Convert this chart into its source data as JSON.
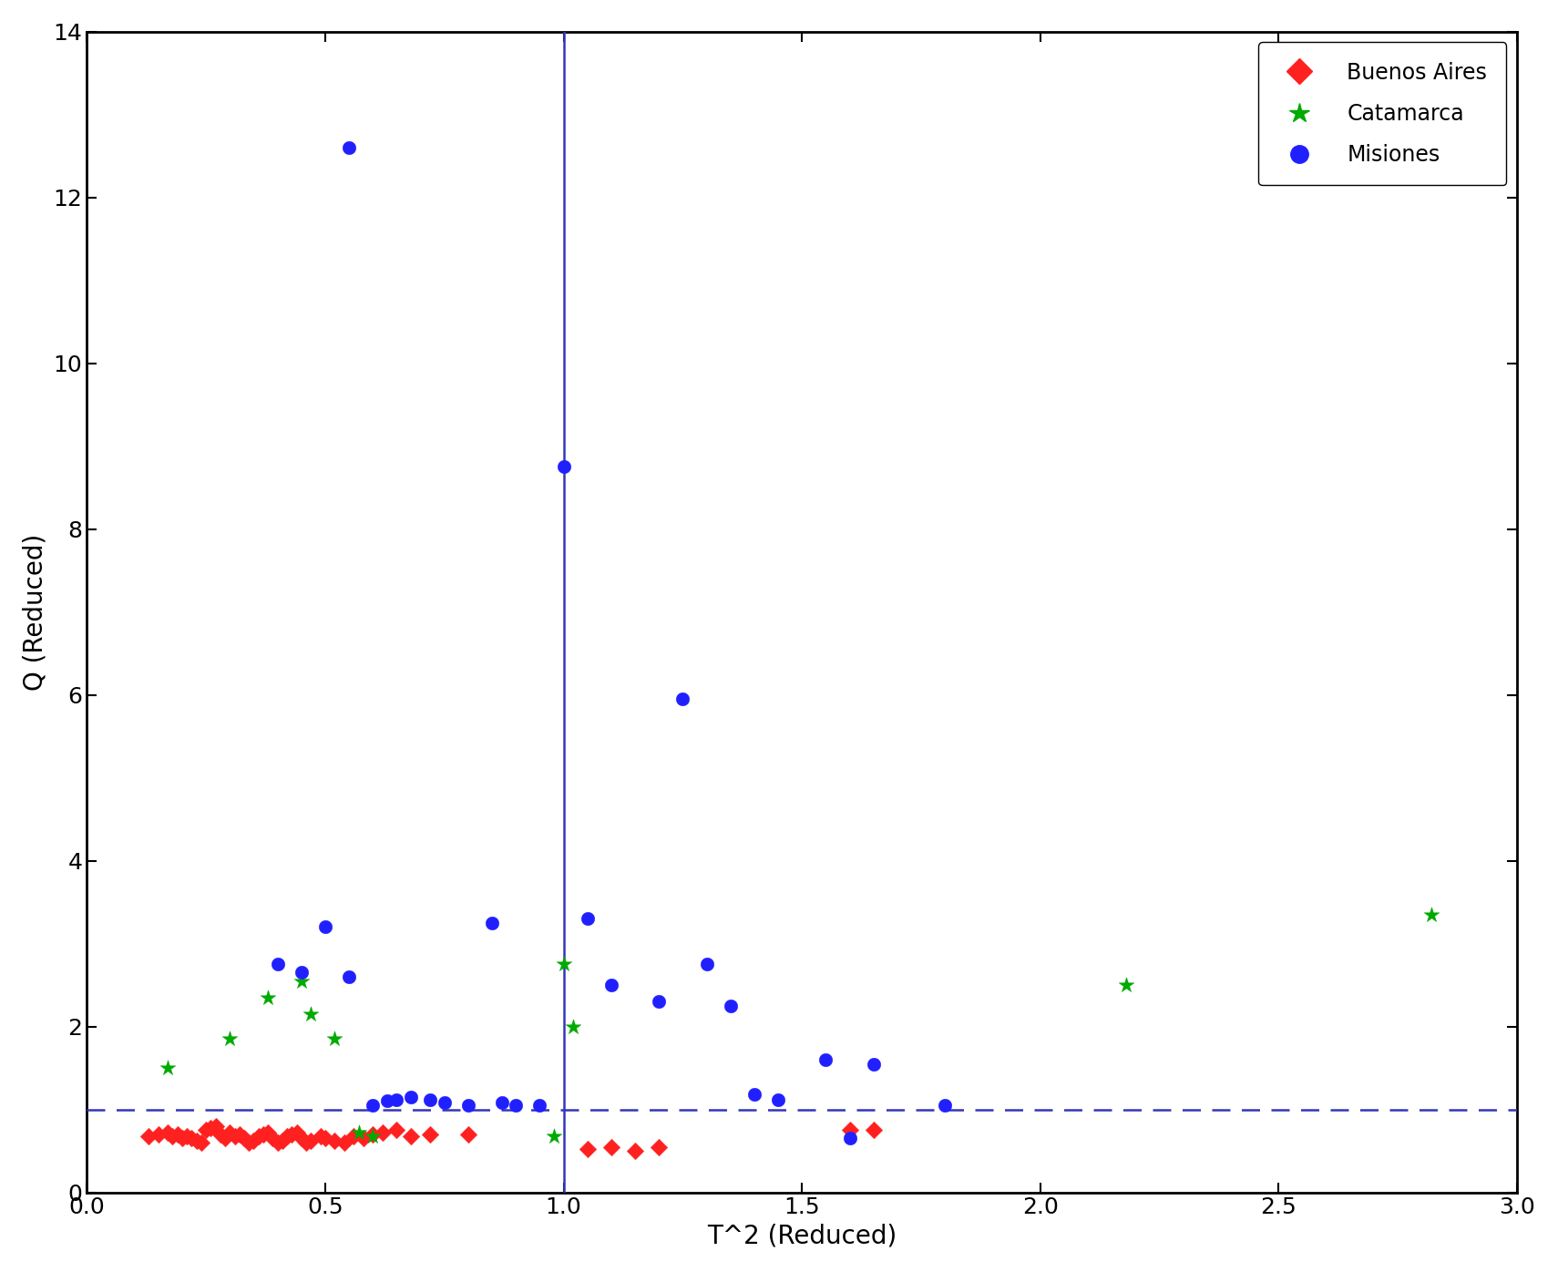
{
  "title": "",
  "xlabel": "T^2 (Reduced)",
  "ylabel": "Q (Reduced)",
  "xlim": [
    0,
    3
  ],
  "ylim": [
    0,
    14
  ],
  "xticks": [
    0,
    0.5,
    1.0,
    1.5,
    2.0,
    2.5,
    3.0
  ],
  "yticks": [
    0,
    2,
    4,
    6,
    8,
    10,
    12,
    14
  ],
  "vline_x": 1.0,
  "vline_style": "solid",
  "hline_y": 1.0,
  "hline_style": "dashed",
  "buenos_aires": {
    "x": [
      0.13,
      0.15,
      0.17,
      0.18,
      0.19,
      0.2,
      0.21,
      0.22,
      0.23,
      0.24,
      0.25,
      0.26,
      0.27,
      0.28,
      0.29,
      0.3,
      0.31,
      0.32,
      0.33,
      0.34,
      0.35,
      0.36,
      0.37,
      0.38,
      0.39,
      0.4,
      0.41,
      0.42,
      0.43,
      0.44,
      0.45,
      0.46,
      0.47,
      0.49,
      0.5,
      0.52,
      0.54,
      0.56,
      0.58,
      0.6,
      0.62,
      0.65,
      0.68,
      0.72,
      0.8,
      1.05,
      1.1,
      1.15,
      1.2,
      1.6,
      1.65
    ],
    "y": [
      0.68,
      0.7,
      0.72,
      0.68,
      0.7,
      0.65,
      0.68,
      0.65,
      0.62,
      0.6,
      0.75,
      0.78,
      0.8,
      0.7,
      0.65,
      0.72,
      0.68,
      0.7,
      0.65,
      0.6,
      0.62,
      0.68,
      0.7,
      0.72,
      0.65,
      0.6,
      0.62,
      0.68,
      0.7,
      0.72,
      0.65,
      0.6,
      0.62,
      0.68,
      0.65,
      0.62,
      0.6,
      0.68,
      0.65,
      0.7,
      0.72,
      0.75,
      0.68,
      0.7,
      0.7,
      0.52,
      0.55,
      0.5,
      0.55,
      0.75,
      0.75
    ],
    "color": "#FF2020",
    "marker": "D",
    "size": 90,
    "label": "Buenos Aires"
  },
  "catamarca": {
    "x": [
      0.17,
      0.3,
      0.38,
      0.45,
      0.47,
      0.52,
      0.57,
      0.6,
      0.98,
      1.0,
      1.02,
      2.18,
      2.82
    ],
    "y": [
      1.5,
      1.85,
      2.35,
      2.55,
      2.15,
      1.85,
      0.72,
      0.68,
      0.68,
      2.75,
      2.0,
      2.5,
      3.35
    ],
    "color": "#00AA00",
    "marker": "*",
    "size": 160,
    "label": "Catamarca"
  },
  "misiones": {
    "x": [
      0.4,
      0.45,
      0.5,
      0.55,
      0.6,
      0.63,
      0.65,
      0.68,
      0.72,
      0.75,
      0.8,
      0.85,
      0.87,
      0.9,
      0.95,
      1.0,
      1.05,
      1.1,
      1.2,
      1.25,
      1.3,
      1.35,
      1.4,
      1.45,
      1.55,
      1.6,
      1.65,
      1.8,
      0.55
    ],
    "y": [
      2.75,
      2.65,
      3.2,
      2.6,
      1.05,
      1.1,
      1.12,
      1.15,
      1.12,
      1.08,
      1.05,
      3.25,
      1.08,
      1.05,
      1.05,
      8.75,
      3.3,
      2.5,
      2.3,
      5.95,
      2.75,
      2.25,
      1.18,
      1.12,
      1.6,
      0.65,
      1.55,
      1.05,
      12.6
    ],
    "color": "#2020FF",
    "marker": "o",
    "size": 110,
    "label": "Misiones"
  },
  "line_color": "#3535BB",
  "line_width": 1.8,
  "background_color": "#FFFFFF",
  "tick_fontsize": 18,
  "label_fontsize": 20,
  "legend_fontsize": 17,
  "spine_linewidth": 2.0
}
